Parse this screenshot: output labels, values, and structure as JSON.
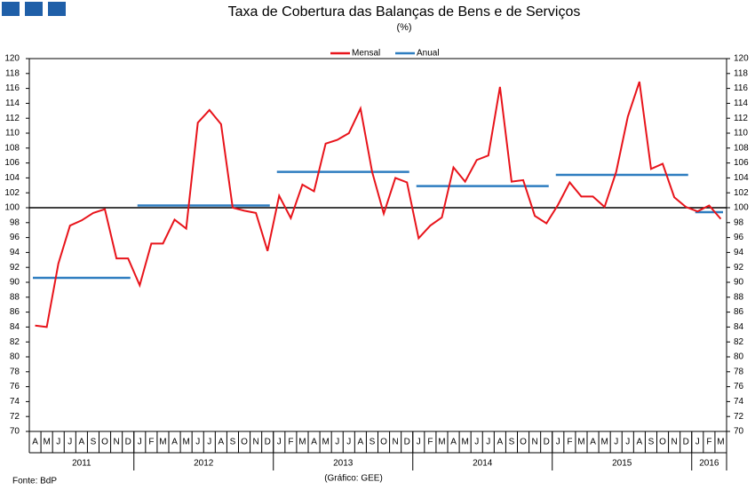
{
  "chart_data": {
    "type": "line",
    "title": "Taxa de Cobertura das Balanças de Bens e de Serviços",
    "subtitle": "(%)",
    "source": "Fonte: BdP",
    "credit": "(Gráfico: GEE)",
    "years": [
      {
        "label": "2011",
        "months": [
          "A",
          "M",
          "J",
          "J",
          "A",
          "S",
          "O",
          "N",
          "D"
        ]
      },
      {
        "label": "2012",
        "months": [
          "J",
          "F",
          "M",
          "A",
          "M",
          "J",
          "J",
          "A",
          "S",
          "O",
          "N",
          "D"
        ]
      },
      {
        "label": "2013",
        "months": [
          "J",
          "F",
          "M",
          "A",
          "M",
          "J",
          "J",
          "A",
          "S",
          "O",
          "N",
          "D"
        ]
      },
      {
        "label": "2014",
        "months": [
          "J",
          "F",
          "M",
          "A",
          "M",
          "J",
          "J",
          "A",
          "S",
          "O",
          "N",
          "D"
        ]
      },
      {
        "label": "2015",
        "months": [
          "J",
          "F",
          "M",
          "A",
          "M",
          "J",
          "J",
          "A",
          "S",
          "O",
          "N",
          "D"
        ]
      },
      {
        "label": "2016",
        "months": [
          "J",
          "F",
          "M"
        ]
      }
    ],
    "series": [
      {
        "name": "Mensal",
        "color": "#e8141b",
        "values": [
          84.2,
          84.0,
          92.5,
          97.6,
          98.3,
          99.3,
          99.8,
          93.2,
          93.2,
          89.6,
          95.2,
          95.2,
          98.4,
          97.2,
          111.4,
          113.1,
          111.2,
          100.0,
          99.6,
          99.3,
          94.2,
          101.6,
          98.6,
          103.1,
          102.2,
          108.6,
          109.1,
          110.0,
          113.3,
          104.8,
          99.2,
          104.0,
          103.4,
          95.9,
          97.6,
          98.7,
          105.4,
          103.5,
          106.4,
          107.0,
          116.2,
          103.5,
          103.7,
          98.9,
          97.9,
          100.4,
          103.4,
          101.5,
          101.5,
          100.1,
          104.8,
          112.2,
          116.9,
          105.2,
          105.9,
          101.4,
          100.1,
          99.5,
          100.3,
          98.5
        ]
      },
      {
        "name": "Anual",
        "color": "#2e7dc0",
        "values": [
          90.6,
          100.3,
          104.8,
          102.9,
          104.4,
          99.4
        ]
      }
    ],
    "ylim": [
      70,
      120
    ],
    "yticks": [
      70,
      72,
      74,
      76,
      78,
      80,
      82,
      84,
      86,
      88,
      90,
      92,
      94,
      96,
      98,
      100,
      102,
      104,
      106,
      108,
      110,
      112,
      114,
      116,
      118,
      120
    ],
    "reference_line": 100,
    "reference_color": "#000000"
  }
}
